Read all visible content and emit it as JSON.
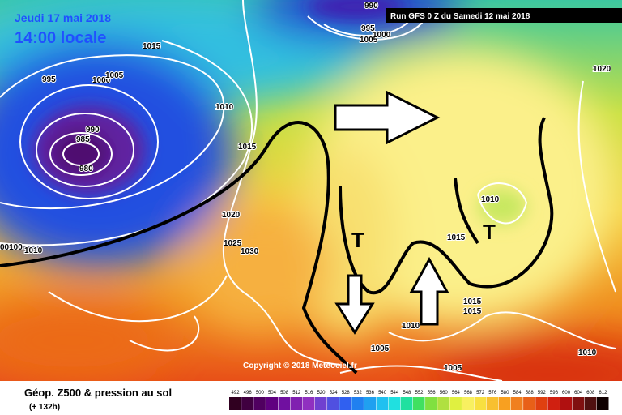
{
  "header": {
    "date": "Jeudi 17 mai 2018",
    "time": "14:00 locale",
    "run": "Run GFS 0 Z du Samedi 12 mai 2018"
  },
  "isobar_labels": [
    "990",
    "995",
    "1000",
    "1005",
    "1015",
    "995",
    "1000",
    "1005",
    "1010",
    "990",
    "985",
    "980",
    "1015",
    "1020",
    "1025",
    "1030",
    "1010",
    "00100",
    "1010",
    "1015",
    "1015",
    "1015",
    "1010",
    "1005",
    "1005",
    "1010",
    "1020"
  ],
  "symbols": [
    "T",
    "T"
  ],
  "copyright": "Copyright © 2018 Meteociel.fr",
  "footer": {
    "title": "Géop. Z500 & pression au sol",
    "lead": "(+ 132h)"
  },
  "legend": {
    "ticks": [
      492,
      496,
      500,
      504,
      508,
      512,
      516,
      520,
      524,
      528,
      532,
      536,
      540,
      544,
      548,
      552,
      556,
      560,
      564,
      568,
      572,
      576,
      580,
      584,
      588,
      592,
      596,
      600,
      604,
      608,
      612
    ]
  }
}
